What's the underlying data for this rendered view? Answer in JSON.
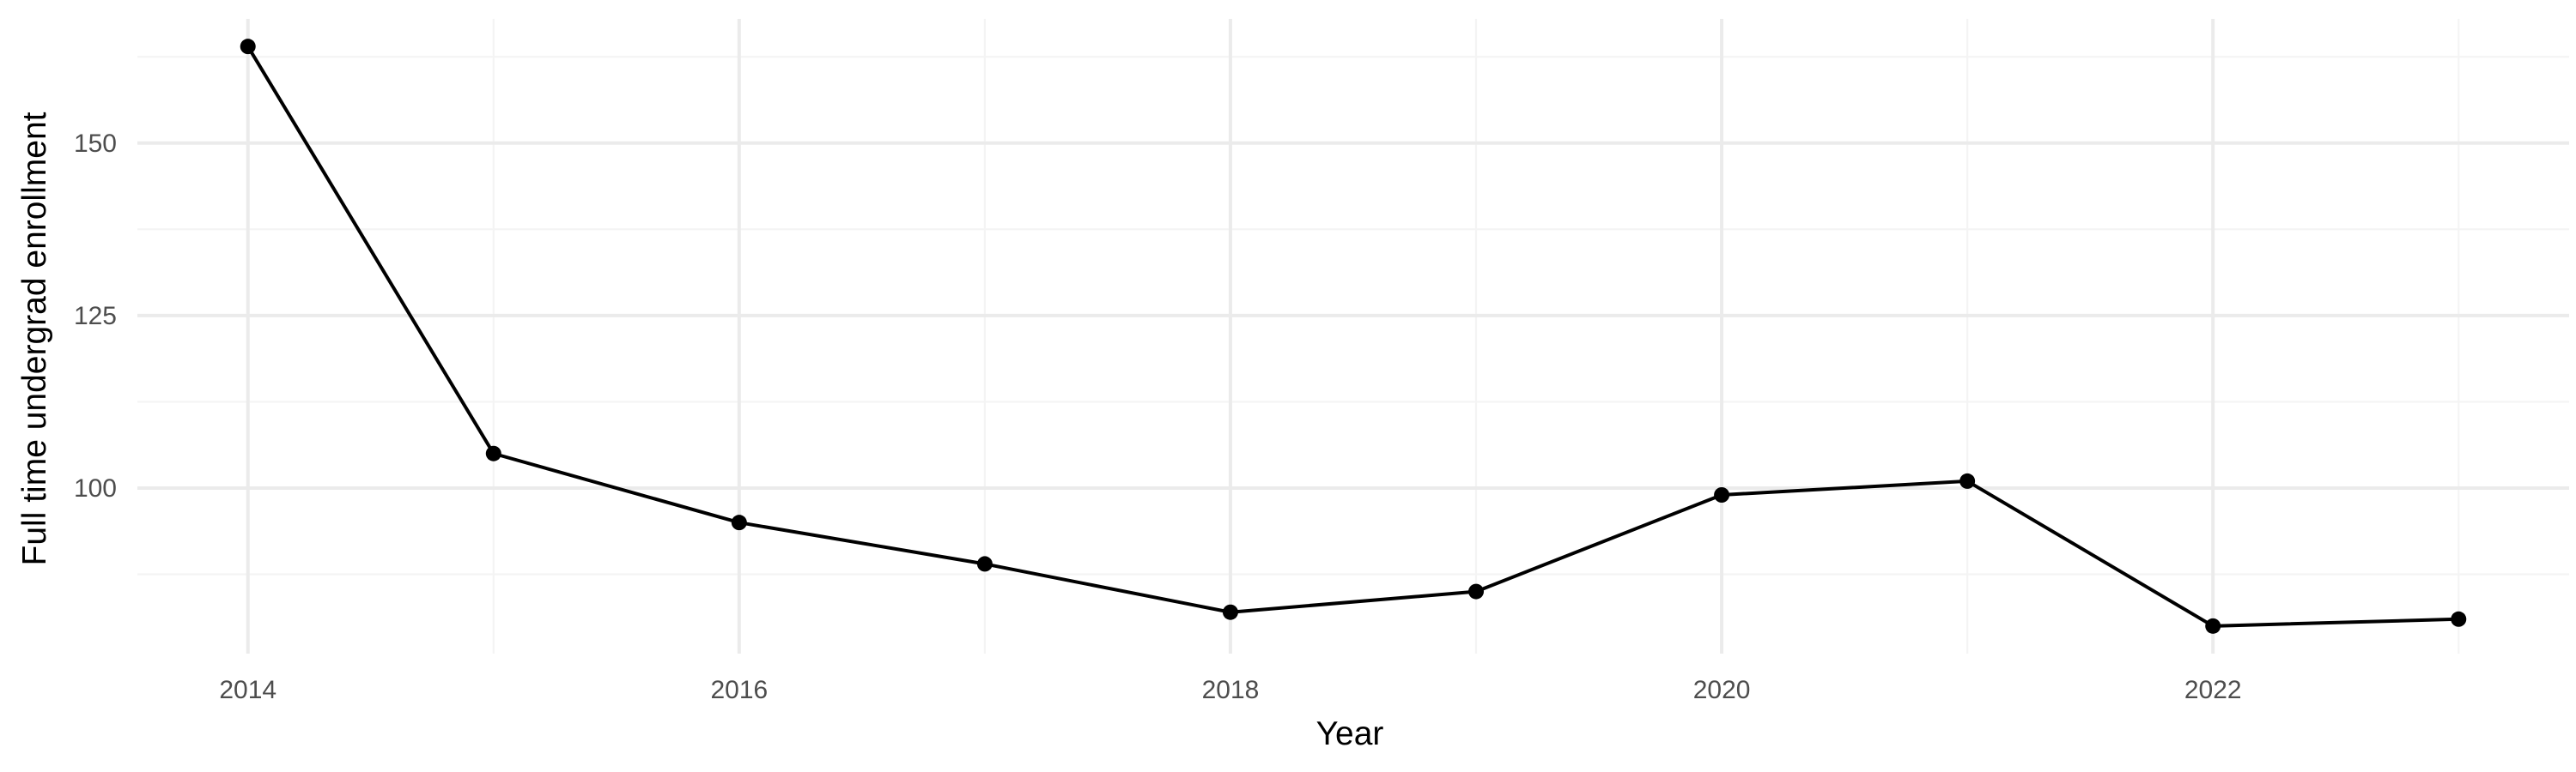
{
  "chart_data": {
    "type": "line",
    "title": "",
    "xlabel": "Year",
    "ylabel": "Full time undergrad enrollment",
    "x": [
      2014,
      2015,
      2016,
      2017,
      2018,
      2019,
      2020,
      2021,
      2022,
      2023
    ],
    "series": [
      {
        "values": [
          164,
          105,
          95,
          89,
          82,
          85,
          99,
          101,
          80,
          81
        ]
      }
    ],
    "xlim": [
      2013.55,
      2023.45
    ],
    "ylim": [
      76.0,
      168.0
    ],
    "xticks": [
      2014,
      2016,
      2018,
      2020,
      2022
    ],
    "yticks": [
      100,
      125,
      150
    ],
    "grid": true,
    "legend": "none",
    "colors": {
      "line": "#000000",
      "points": "#000000",
      "grid_major": "#ebebeb",
      "grid_minor": "#f4f4f4",
      "tick_text": "#4d4d4d",
      "axis_title": "#000000",
      "background": "#ffffff"
    }
  }
}
